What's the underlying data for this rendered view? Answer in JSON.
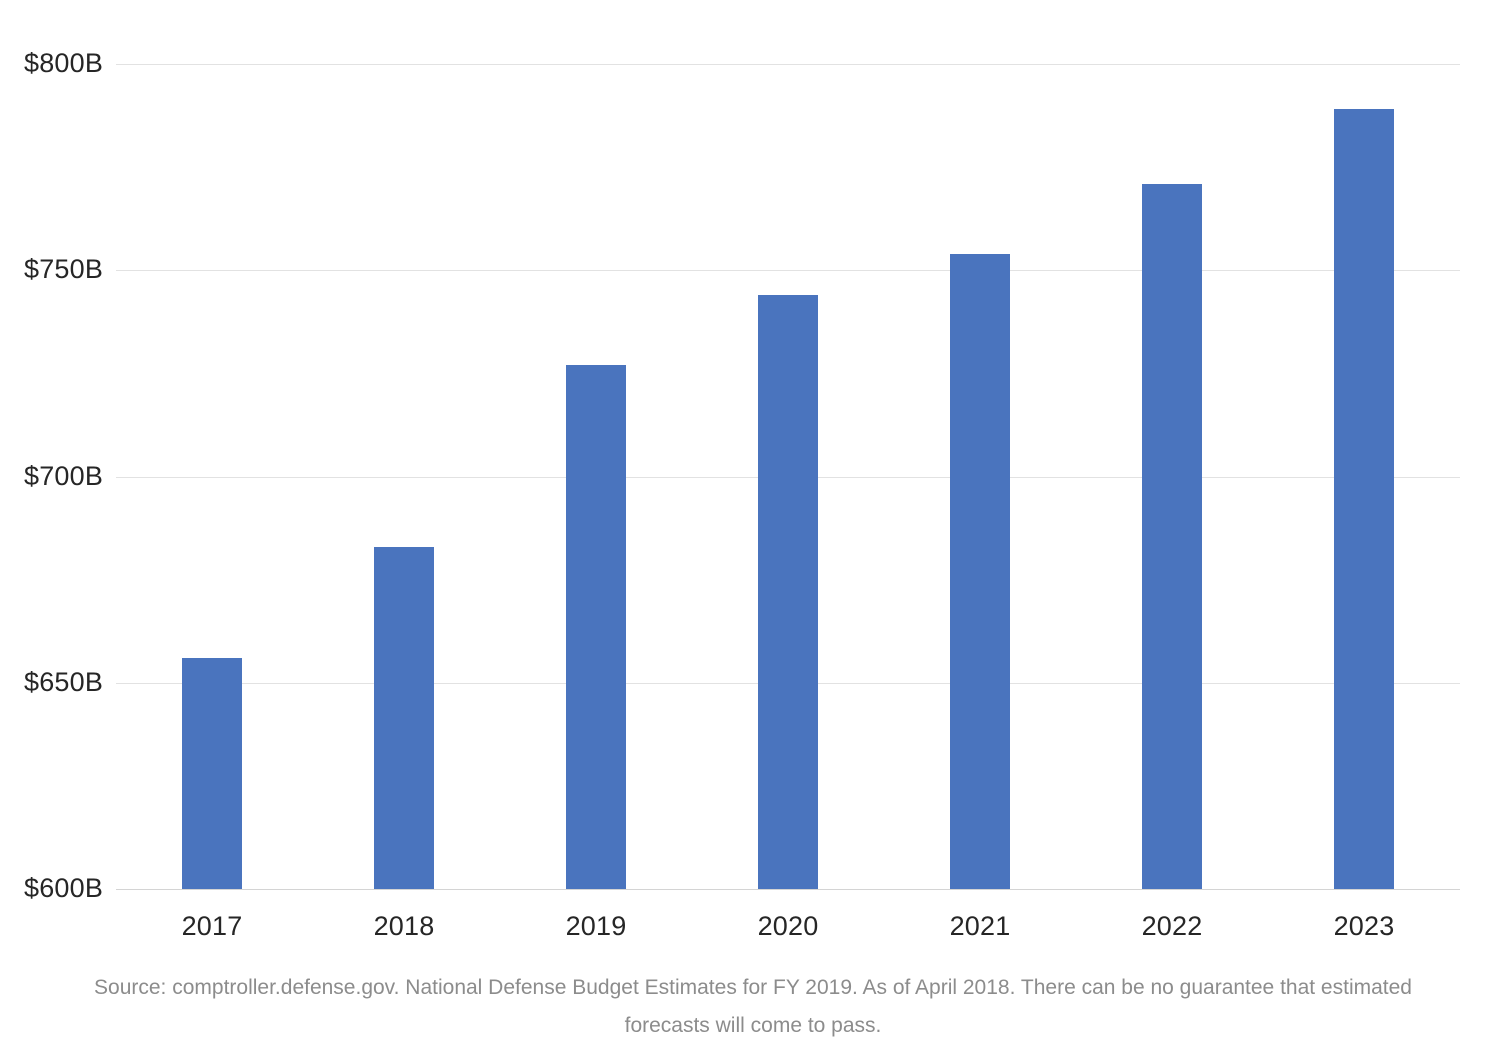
{
  "chart_data": {
    "type": "bar",
    "title": "",
    "xlabel": "",
    "ylabel": "",
    "categories": [
      "2017",
      "2018",
      "2019",
      "2020",
      "2021",
      "2022",
      "2023"
    ],
    "values": [
      656,
      683,
      727,
      744,
      754,
      771,
      789
    ],
    "value_unit": "billions of USD",
    "ylim": [
      600,
      800
    ],
    "ytick_values": [
      600,
      650,
      700,
      750,
      800
    ],
    "ytick_labels": [
      "$600B",
      "$650B",
      "$700B",
      "$750B",
      "$800B"
    ],
    "grid": true,
    "legend": false,
    "colors": {
      "bar": "#4a74be",
      "gridline": "#e2e2e2",
      "axis_line": "#d4d4d4",
      "tick_label": "#262626",
      "source_text": "#8c8c8c",
      "background": "#ffffff"
    }
  },
  "source": {
    "line1": "Source: comptroller.defense.gov. National Defense Budget Estimates for FY 2019. As of April 2018. There can be no guarantee that estimated",
    "line2": "forecasts will come to pass."
  }
}
